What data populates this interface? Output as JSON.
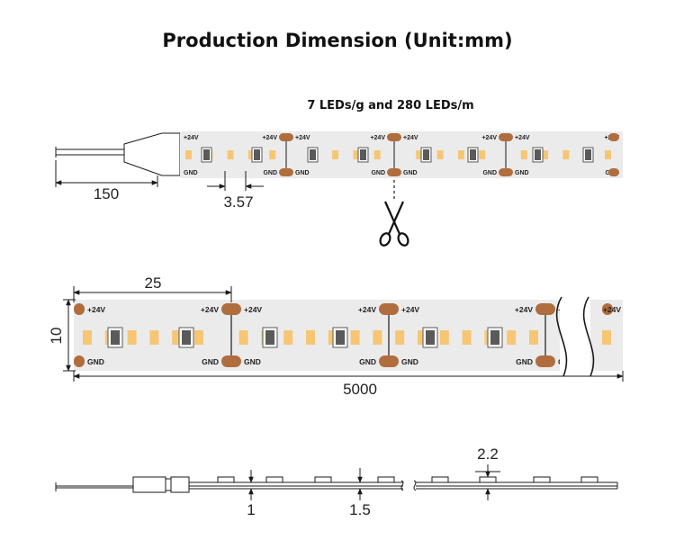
{
  "title": "Production Dimension (Unit:mm)",
  "subtitle": "7 LEDs/g and 280 LEDs/m",
  "labels": {
    "plus": "+24V",
    "gnd": "GND"
  },
  "dimensions": {
    "wire_length": "150",
    "led_pitch": "3.57",
    "cut_length": "25",
    "width": "10",
    "total_length": "5000",
    "component_height": "2.2",
    "pcb_thickness": "1",
    "total_thickness": "1.5"
  },
  "colors": {
    "strip": "#ebebeb",
    "led": "#f6c674",
    "pad": "#b06d3e",
    "ic": "#5a5a5a",
    "line": "#1a1a1a"
  },
  "icons": {
    "cut": "scissors-icon"
  }
}
